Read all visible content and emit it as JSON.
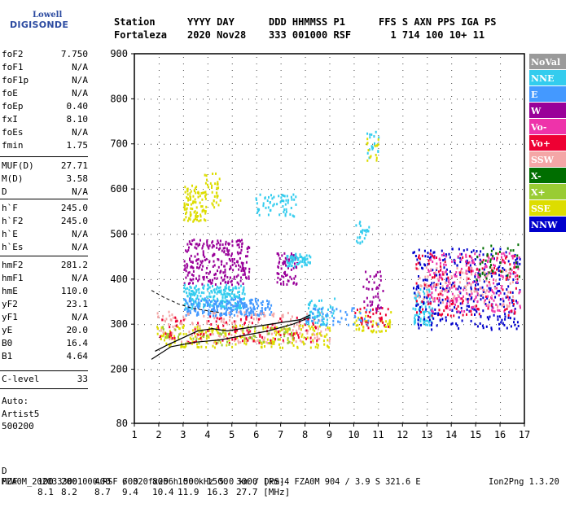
{
  "logo": {
    "top": "Lowell",
    "bottom": "DIGISONDE"
  },
  "header": {
    "line1": [
      "Station",
      "YYYY DAY",
      "DDD HHMMSS P1",
      "FFS S AXN PPS IGA PS"
    ],
    "line2": [
      "Fortaleza",
      "2020 Nov28",
      "333 001000 RSF",
      "  1 714 100 10+ 11"
    ]
  },
  "params_group1": [
    {
      "k": "foF2",
      "v": "7.750"
    },
    {
      "k": "foF1",
      "v": "N/A"
    },
    {
      "k": "foF1p",
      "v": "N/A"
    },
    {
      "k": "foE",
      "v": "N/A"
    },
    {
      "k": "foEp",
      "v": "0.40"
    },
    {
      "k": "fxI",
      "v": "8.10"
    },
    {
      "k": "foEs",
      "v": "N/A"
    },
    {
      "k": "fmin",
      "v": "1.75"
    }
  ],
  "params_group2": [
    {
      "k": "MUF(D)",
      "v": "27.71"
    },
    {
      "k": "M(D)",
      "v": "3.58"
    },
    {
      "k": "D",
      "v": "N/A"
    }
  ],
  "params_group3": [
    {
      "k": "h`F",
      "v": "245.0"
    },
    {
      "k": "h`F2",
      "v": "245.0"
    },
    {
      "k": "h`E",
      "v": "N/A"
    },
    {
      "k": "h`Es",
      "v": "N/A"
    }
  ],
  "params_group4": [
    {
      "k": "hmF2",
      "v": "281.2"
    },
    {
      "k": "hmF1",
      "v": "N/A"
    },
    {
      "k": "hmE",
      "v": "110.0"
    },
    {
      "k": "yF2",
      "v": "23.1"
    },
    {
      "k": "yF1",
      "v": "N/A"
    },
    {
      "k": "yE",
      "v": "20.0"
    },
    {
      "k": "B0",
      "v": "16.4"
    },
    {
      "k": "B1",
      "v": "4.64"
    }
  ],
  "clevel": {
    "k": "C-level",
    "v": "33"
  },
  "autoscaling": {
    "line1": "Auto:",
    "line2": "Artist5",
    "line3": "500200"
  },
  "legend": [
    {
      "label": "NoVal",
      "color": "#9a9a9a"
    },
    {
      "label": "NNE",
      "color": "#33ccee"
    },
    {
      "label": "E",
      "color": "#4499ff"
    },
    {
      "label": "W",
      "color": "#990099"
    },
    {
      "label": "Vo-",
      "color": "#ee33aa"
    },
    {
      "label": "Vo+",
      "color": "#ee0033"
    },
    {
      "label": "SSW",
      "color": "#f4a6a6"
    },
    {
      "label": "X-",
      "color": "#006e00"
    },
    {
      "label": "X+",
      "color": "#99cc33"
    },
    {
      "label": "SSE",
      "color": "#dddd00"
    },
    {
      "label": "NNW",
      "color": "#0000cc"
    }
  ],
  "footer": {
    "d_label": "D",
    "d_values": [
      "100",
      "200",
      "400",
      "600",
      "800",
      "1000",
      "1500",
      "3000 [km]"
    ],
    "muf_label": "MUF",
    "muf_values": [
      "8.1",
      "8.2",
      "8.7",
      "9.4",
      "10.4",
      "11.9",
      "16.3",
      "27.7 [MHz]"
    ],
    "file_line": "FZA0M_2020333001000.RSF / 320fx256h 50 kHz 5.0 km / DPS-4 FZA0M 904 / 3.9 S 321.6 E",
    "tag": "Ion2Png 1.3.20"
  },
  "chart_data": {
    "type": "scatter",
    "xlabel": "",
    "ylabel": "",
    "xlim": [
      1,
      17
    ],
    "ylim": [
      80,
      900
    ],
    "x_ticks": [
      1,
      2,
      3,
      4,
      5,
      6,
      7,
      8,
      9,
      10,
      11,
      12,
      13,
      14,
      15,
      16,
      17
    ],
    "y_ticks": [
      80,
      200,
      300,
      400,
      500,
      600,
      700,
      800,
      900
    ],
    "clusters": [
      {
        "series": "W",
        "x": [
          3.0,
          5.7
        ],
        "y": [
          390,
          490
        ],
        "n": 260
      },
      {
        "series": "W",
        "x": [
          6.8,
          7.7
        ],
        "y": [
          390,
          460
        ],
        "n": 70
      },
      {
        "series": "SSE",
        "x": [
          3.0,
          3.9
        ],
        "y": [
          530,
          610
        ],
        "n": 90
      },
      {
        "series": "SSE",
        "x": [
          3.8,
          4.5
        ],
        "y": [
          560,
          640
        ],
        "n": 40
      },
      {
        "series": "NNE",
        "x": [
          3.0,
          5.5
        ],
        "y": [
          335,
          390
        ],
        "n": 220
      },
      {
        "series": "NNE",
        "x": [
          5.9,
          7.6
        ],
        "y": [
          540,
          590
        ],
        "n": 60
      },
      {
        "series": "NNE",
        "x": [
          7.2,
          8.2
        ],
        "y": [
          430,
          460
        ],
        "n": 60
      },
      {
        "series": "NNE",
        "x": [
          10.0,
          10.6
        ],
        "y": [
          480,
          530
        ],
        "n": 25
      },
      {
        "series": "NNE",
        "x": [
          12.4,
          13.2
        ],
        "y": [
          300,
          380
        ],
        "n": 80
      },
      {
        "series": "E",
        "x": [
          3.0,
          6.6
        ],
        "y": [
          320,
          360
        ],
        "n": 220
      },
      {
        "series": "NNW",
        "x": [
          12.4,
          16.8
        ],
        "y": [
          290,
          470
        ],
        "n": 320
      },
      {
        "series": "Vo-",
        "x": [
          13.0,
          16.8
        ],
        "y": [
          330,
          460
        ],
        "n": 240
      },
      {
        "series": "SSW",
        "x": [
          1.9,
          9.0
        ],
        "y": [
          260,
          330
        ],
        "n": 220
      },
      {
        "series": "SSW",
        "x": [
          12.5,
          16.5
        ],
        "y": [
          340,
          430
        ],
        "n": 120
      },
      {
        "series": "SSE",
        "x": [
          1.9,
          9.0
        ],
        "y": [
          250,
          300
        ],
        "n": 220
      },
      {
        "series": "SSE",
        "x": [
          10.0,
          11.5
        ],
        "y": [
          285,
          330
        ],
        "n": 50
      },
      {
        "series": "Vo+",
        "x": [
          2.0,
          8.5
        ],
        "y": [
          260,
          320
        ],
        "n": 120
      },
      {
        "series": "Vo+",
        "x": [
          10.0,
          11.4
        ],
        "y": [
          290,
          340
        ],
        "n": 40
      },
      {
        "series": "Vo+",
        "x": [
          12.5,
          16.8
        ],
        "y": [
          320,
          460
        ],
        "n": 120
      },
      {
        "series": "X+",
        "x": [
          2.0,
          7.5
        ],
        "y": [
          255,
          300
        ],
        "n": 60
      },
      {
        "series": "X-",
        "x": [
          15.0,
          16.8
        ],
        "y": [
          400,
          480
        ],
        "n": 40
      },
      {
        "series": "NNE",
        "x": [
          10.5,
          11.0
        ],
        "y": [
          670,
          730
        ],
        "n": 20
      },
      {
        "series": "SSE",
        "x": [
          10.5,
          11.0
        ],
        "y": [
          660,
          720
        ],
        "n": 15
      },
      {
        "series": "W",
        "x": [
          10.3,
          11.2
        ],
        "y": [
          330,
          420
        ],
        "n": 40
      },
      {
        "series": "NNE",
        "x": [
          8.0,
          9.2
        ],
        "y": [
          300,
          360
        ],
        "n": 60
      },
      {
        "series": "E",
        "x": [
          8.0,
          11.0
        ],
        "y": [
          300,
          340
        ],
        "n": 50
      }
    ],
    "profile_curve": {
      "x": [
        1.7,
        2.5,
        3.5,
        4.5,
        5.5,
        6.5,
        7.5,
        8.2
      ],
      "y": [
        222,
        250,
        260,
        265,
        275,
        285,
        300,
        315
      ]
    },
    "upper_curve": {
      "x": [
        1.7,
        2.2,
        2.8,
        3.4,
        4.0,
        4.6
      ],
      "y": [
        375,
        360,
        345,
        335,
        330,
        325
      ]
    },
    "trace_curve": {
      "x": [
        1.85,
        2.4,
        3.0,
        3.6,
        4.2,
        4.8,
        5.4,
        6.0,
        6.6,
        7.2,
        7.8,
        8.2
      ],
      "y": [
        240,
        255,
        270,
        285,
        290,
        285,
        290,
        295,
        300,
        305,
        310,
        320
      ]
    }
  }
}
